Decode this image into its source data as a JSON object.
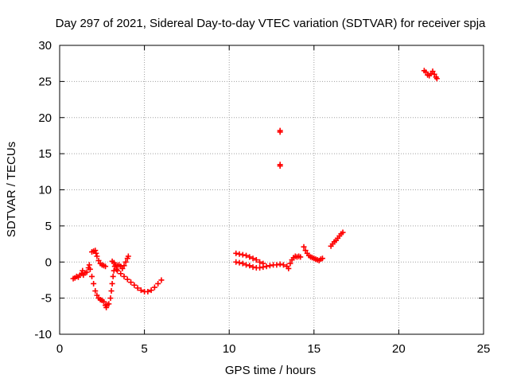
{
  "chart_data": {
    "type": "scatter",
    "title": "Day 297 of 2021, Sidereal Day-to-day VTEC variation (SDTVAR) for receiver spja",
    "xlabel": "GPS time / hours",
    "ylabel": "SDTVAR / TECUs",
    "xlim": [
      0,
      25
    ],
    "ylim": [
      -10,
      30
    ],
    "x_ticks": [
      0,
      5,
      10,
      15,
      20,
      25
    ],
    "y_ticks": [
      -10,
      -5,
      0,
      5,
      10,
      15,
      20,
      25,
      30
    ],
    "grid": true,
    "marker": "plus",
    "series_color": "#ff0000",
    "series": [
      {
        "points": [
          [
            0.8,
            -2.3
          ],
          [
            0.9,
            -2.2
          ],
          [
            1.0,
            -2.0
          ],
          [
            1.1,
            -2.1
          ],
          [
            1.2,
            -1.8
          ],
          [
            1.3,
            -1.6
          ],
          [
            1.35,
            -1.2
          ],
          [
            1.4,
            -1.8
          ],
          [
            1.5,
            -1.5
          ],
          [
            1.6,
            -1.4
          ],
          [
            1.7,
            -0.8
          ],
          [
            1.75,
            -0.4
          ],
          [
            1.8,
            -1.0
          ],
          [
            1.9,
            -2.0
          ],
          [
            2.0,
            -3.0
          ],
          [
            2.1,
            -4.0
          ],
          [
            2.2,
            -4.6
          ],
          [
            2.3,
            -5.0
          ],
          [
            2.4,
            -5.2
          ],
          [
            2.5,
            -5.3
          ],
          [
            2.6,
            -5.5
          ],
          [
            2.7,
            -6.0
          ],
          [
            2.75,
            -6.3
          ],
          [
            2.8,
            -5.9
          ],
          [
            1.9,
            1.4
          ],
          [
            2.0,
            1.5
          ],
          [
            2.1,
            1.6
          ],
          [
            2.15,
            1.2
          ],
          [
            2.2,
            0.8
          ],
          [
            2.3,
            0.2
          ],
          [
            2.4,
            -0.2
          ],
          [
            2.5,
            -0.4
          ],
          [
            2.6,
            -0.5
          ],
          [
            2.7,
            -0.6
          ],
          [
            2.9,
            -5.8
          ],
          [
            3.0,
            -5.0
          ],
          [
            3.05,
            -4.0
          ],
          [
            3.1,
            -3.0
          ],
          [
            3.15,
            -2.0
          ],
          [
            3.2,
            -1.2
          ],
          [
            3.25,
            -0.6
          ],
          [
            3.1,
            0.1
          ],
          [
            3.2,
            -0.1
          ],
          [
            3.3,
            -0.4
          ],
          [
            3.35,
            -1.0
          ],
          [
            3.4,
            -0.5
          ],
          [
            3.5,
            -0.4
          ],
          [
            3.6,
            -0.6
          ],
          [
            3.7,
            -0.9
          ],
          [
            3.8,
            -0.5
          ],
          [
            3.9,
            0.0
          ],
          [
            4.0,
            0.5
          ],
          [
            4.05,
            0.8
          ],
          [
            3.4,
            -1.2
          ],
          [
            3.6,
            -1.6
          ],
          [
            3.8,
            -2.0
          ],
          [
            4.0,
            -2.4
          ],
          [
            4.2,
            -2.8
          ],
          [
            4.4,
            -3.2
          ],
          [
            4.6,
            -3.6
          ],
          [
            4.8,
            -3.9
          ],
          [
            5.0,
            -4.1
          ],
          [
            5.2,
            -4.1
          ],
          [
            5.4,
            -3.9
          ],
          [
            5.6,
            -3.5
          ],
          [
            5.8,
            -3.0
          ],
          [
            6.0,
            -2.5
          ],
          [
            10.4,
            1.2
          ],
          [
            10.6,
            1.1
          ],
          [
            10.8,
            1.0
          ],
          [
            11.0,
            0.9
          ],
          [
            11.2,
            0.7
          ],
          [
            11.4,
            0.5
          ],
          [
            11.6,
            0.3
          ],
          [
            11.8,
            0.0
          ],
          [
            12.0,
            -0.2
          ],
          [
            10.4,
            0.0
          ],
          [
            10.6,
            -0.1
          ],
          [
            10.8,
            -0.2
          ],
          [
            11.0,
            -0.4
          ],
          [
            11.2,
            -0.5
          ],
          [
            11.4,
            -0.7
          ],
          [
            11.6,
            -0.8
          ],
          [
            11.8,
            -0.8
          ],
          [
            12.0,
            -0.7
          ],
          [
            12.2,
            -0.6
          ],
          [
            12.4,
            -0.5
          ],
          [
            12.6,
            -0.4
          ],
          [
            12.8,
            -0.4
          ],
          [
            13.0,
            -0.3
          ],
          [
            13.2,
            -0.4
          ],
          [
            13.4,
            -0.6
          ],
          [
            13.5,
            -0.9
          ],
          [
            13.6,
            -0.2
          ],
          [
            13.7,
            0.3
          ],
          [
            13.8,
            0.6
          ],
          [
            13.9,
            0.8
          ],
          [
            14.0,
            0.7
          ],
          [
            14.1,
            0.8
          ],
          [
            14.2,
            0.7
          ],
          [
            14.4,
            2.1
          ],
          [
            14.5,
            1.6
          ],
          [
            14.6,
            1.2
          ],
          [
            14.7,
            0.9
          ],
          [
            14.8,
            0.7
          ],
          [
            14.9,
            0.6
          ],
          [
            15.0,
            0.5
          ],
          [
            15.1,
            0.4
          ],
          [
            15.2,
            0.3
          ],
          [
            15.3,
            0.2
          ],
          [
            15.4,
            0.4
          ],
          [
            15.5,
            0.5
          ],
          [
            16.0,
            2.2
          ],
          [
            16.1,
            2.5
          ],
          [
            16.2,
            2.8
          ],
          [
            16.3,
            3.0
          ],
          [
            16.4,
            3.3
          ],
          [
            16.5,
            3.6
          ],
          [
            16.6,
            3.9
          ],
          [
            16.7,
            4.1
          ],
          [
            13.0,
            18.2
          ],
          [
            13.0,
            18.0
          ],
          [
            13.0,
            13.3
          ],
          [
            13.0,
            13.5
          ],
          [
            21.5,
            26.5
          ],
          [
            21.6,
            26.3
          ],
          [
            21.7,
            25.9
          ],
          [
            21.8,
            25.8
          ],
          [
            21.9,
            26.1
          ],
          [
            22.0,
            26.4
          ],
          [
            22.1,
            26.0
          ],
          [
            22.2,
            25.6
          ],
          [
            22.25,
            25.4
          ]
        ]
      }
    ]
  }
}
